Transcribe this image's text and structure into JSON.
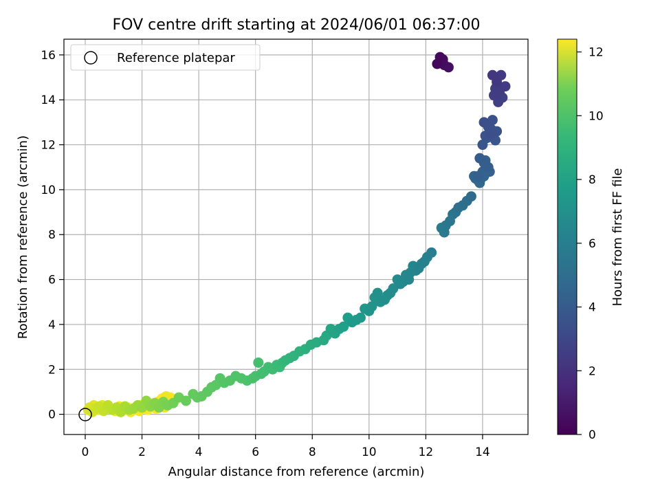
{
  "chart_data": {
    "type": "scatter",
    "title": "FOV centre drift starting at 2024/06/01 06:37:00",
    "xlabel": "Angular distance from reference (arcmin)",
    "ylabel": "Rotation from reference (arcmin)",
    "xlim": [
      -0.75,
      15.6
    ],
    "ylim": [
      -0.9,
      16.7
    ],
    "xticks": [
      0,
      2,
      4,
      6,
      8,
      10,
      12,
      14
    ],
    "yticks": [
      0,
      2,
      4,
      6,
      8,
      10,
      12,
      14,
      16
    ],
    "grid": true,
    "legend": {
      "placement": "top-left",
      "entries": [
        "Reference platepar"
      ]
    },
    "reference_point": {
      "x": 0,
      "y": 0
    },
    "colorbar": {
      "label": "Hours from first FF file",
      "range": [
        0,
        12.4
      ],
      "ticks": [
        0,
        2,
        4,
        6,
        8,
        10,
        12
      ],
      "colormap": "viridis"
    },
    "series": [
      {
        "x": [
          12.4,
          12.5,
          12.55,
          12.6,
          12.65,
          12.8,
          14.35,
          14.5,
          14.65,
          14.8,
          14.45,
          14.6,
          14.4,
          14.55,
          14.7,
          14.5,
          14.05,
          14.2,
          14.35,
          14.5,
          14.1,
          14.25,
          14.45,
          14.0,
          14.15,
          14.3,
          13.9,
          14.05,
          14.2,
          13.85,
          14.0,
          14.25,
          14.1,
          13.95,
          13.7,
          13.85,
          14.05,
          13.9,
          13.75,
          14.3,
          13.6,
          13.45,
          13.3,
          13.15,
          13.05,
          12.95,
          12.85,
          12.7,
          12.65,
          12.55,
          12.2,
          12.05,
          11.95,
          11.85,
          11.75,
          11.65,
          11.55,
          11.45,
          11.4,
          11.3,
          11.2,
          11.1,
          11.0,
          10.85,
          10.75,
          10.65,
          10.55,
          10.4,
          10.3,
          10.2,
          10.1,
          10.0,
          9.85,
          9.7,
          9.55,
          9.4,
          9.25,
          9.1,
          8.95,
          8.8,
          8.65,
          8.5,
          8.4,
          8.15,
          7.95,
          7.75,
          7.55,
          7.35,
          7.2,
          7.05,
          6.95,
          6.85,
          6.75,
          6.6,
          6.45,
          6.3,
          6.2,
          6.1,
          6.0,
          5.9,
          5.7,
          5.5,
          5.3,
          5.1,
          4.9,
          4.75,
          4.6,
          4.45,
          4.3,
          4.1,
          3.95,
          3.8,
          3.55,
          3.3,
          3.1,
          2.9,
          2.75,
          2.6,
          2.45,
          2.3,
          2.15,
          2.0,
          1.85,
          1.7,
          1.55,
          1.4,
          1.25,
          1.1,
          0.95,
          0.8,
          0.65,
          0.5,
          0.35,
          0.25,
          0.15,
          0.1,
          0.2,
          0.3,
          0.45,
          0.6,
          0.75,
          0.9,
          1.05,
          1.2,
          1.35,
          1.5,
          1.65,
          1.8,
          1.95,
          2.1,
          2.25,
          2.4,
          2.55,
          2.7,
          2.85,
          3.0,
          3.15,
          2.95,
          2.8,
          2.65,
          2.5,
          2.35,
          2.2,
          2.05,
          1.9,
          1.75,
          1.6
        ],
        "y": [
          15.6,
          15.9,
          15.7,
          15.8,
          15.55,
          15.45,
          15.1,
          14.8,
          15.1,
          14.6,
          14.5,
          14.3,
          14.2,
          13.9,
          14.1,
          14.6,
          13.0,
          12.8,
          13.1,
          12.6,
          12.4,
          12.5,
          12.2,
          12.0,
          12.3,
          12.7,
          11.4,
          11.2,
          11.0,
          10.6,
          10.8,
          10.8,
          11.3,
          10.5,
          10.6,
          10.4,
          10.6,
          10.3,
          10.5,
          12.5,
          9.7,
          9.5,
          9.3,
          9.2,
          9.0,
          8.9,
          8.6,
          8.4,
          8.1,
          8.3,
          7.2,
          7.0,
          6.8,
          6.7,
          6.5,
          6.4,
          6.6,
          6.3,
          6.0,
          6.2,
          5.9,
          5.8,
          6.0,
          5.6,
          5.4,
          5.3,
          5.1,
          5.0,
          5.4,
          5.2,
          4.8,
          4.6,
          4.7,
          4.3,
          4.2,
          4.1,
          4.3,
          3.9,
          3.8,
          3.6,
          3.8,
          3.5,
          3.3,
          3.2,
          3.1,
          2.9,
          2.8,
          2.6,
          2.5,
          2.4,
          2.3,
          2.1,
          2.2,
          2.0,
          2.1,
          1.9,
          1.8,
          2.3,
          1.7,
          1.6,
          1.5,
          1.6,
          1.7,
          1.5,
          1.4,
          1.6,
          1.3,
          1.2,
          1.0,
          0.8,
          0.75,
          0.9,
          0.6,
          0.75,
          0.5,
          0.4,
          0.55,
          0.3,
          0.5,
          0.35,
          0.6,
          0.3,
          0.4,
          0.25,
          0.2,
          0.35,
          0.1,
          0.3,
          0.2,
          0.4,
          0.15,
          0.35,
          0.25,
          0.1,
          0.3,
          0.2,
          0.3,
          0.4,
          0.2,
          0.4,
          0.3,
          0.25,
          0.15,
          0.35,
          0.2,
          0.3,
          0.25,
          0.35,
          0.4,
          0.3,
          0.5,
          0.45,
          0.55,
          0.7,
          0.8,
          0.75,
          0.6,
          0.45,
          0.3,
          0.4,
          0.25,
          0.35,
          0.2,
          0.3,
          0.15,
          0.25,
          0.1
        ],
        "c": [
          0.2,
          0.3,
          0.35,
          0.4,
          0.45,
          0.5,
          2.0,
          2.05,
          2.1,
          2.15,
          2.2,
          2.25,
          2.3,
          2.35,
          2.4,
          2.45,
          3.0,
          3.05,
          3.1,
          3.15,
          3.2,
          3.25,
          3.3,
          3.35,
          3.4,
          3.45,
          3.6,
          3.65,
          3.7,
          3.75,
          3.8,
          3.85,
          3.9,
          3.95,
          4.0,
          4.05,
          4.1,
          4.15,
          4.2,
          3.0,
          4.3,
          4.4,
          4.5,
          4.6,
          4.7,
          4.8,
          4.9,
          5.0,
          5.1,
          5.2,
          5.3,
          5.4,
          5.45,
          5.5,
          5.55,
          5.6,
          5.65,
          5.7,
          5.75,
          5.8,
          5.85,
          5.9,
          5.95,
          6.0,
          6.05,
          6.1,
          6.15,
          6.2,
          6.25,
          6.3,
          6.35,
          6.4,
          6.5,
          6.6,
          6.7,
          6.8,
          6.9,
          7.0,
          7.1,
          7.2,
          7.3,
          7.4,
          7.5,
          7.6,
          7.7,
          7.8,
          7.9,
          8.0,
          8.1,
          8.2,
          8.3,
          8.4,
          8.45,
          8.5,
          8.55,
          8.6,
          8.65,
          8.7,
          8.75,
          8.8,
          8.85,
          8.9,
          8.95,
          9.0,
          9.05,
          9.1,
          9.15,
          9.2,
          9.25,
          9.3,
          9.35,
          9.4,
          9.5,
          9.6,
          9.7,
          9.8,
          9.9,
          10.0,
          10.1,
          10.2,
          10.3,
          10.4,
          10.5,
          10.6,
          10.7,
          10.8,
          10.9,
          11.0,
          11.1,
          11.2,
          11.3,
          11.4,
          11.5,
          11.6,
          11.7,
          11.75,
          11.8,
          11.85,
          11.9,
          11.95,
          12.0,
          12.05,
          12.1,
          12.15,
          12.2,
          12.25,
          12.3,
          12.35,
          12.4,
          12.3,
          12.35,
          12.2,
          12.25,
          12.4,
          12.1,
          12.3,
          12.2,
          12.35,
          12.15,
          12.25,
          12.3,
          12.2,
          12.35,
          12.1,
          12.25,
          12.3,
          12.2
        ]
      }
    ]
  }
}
